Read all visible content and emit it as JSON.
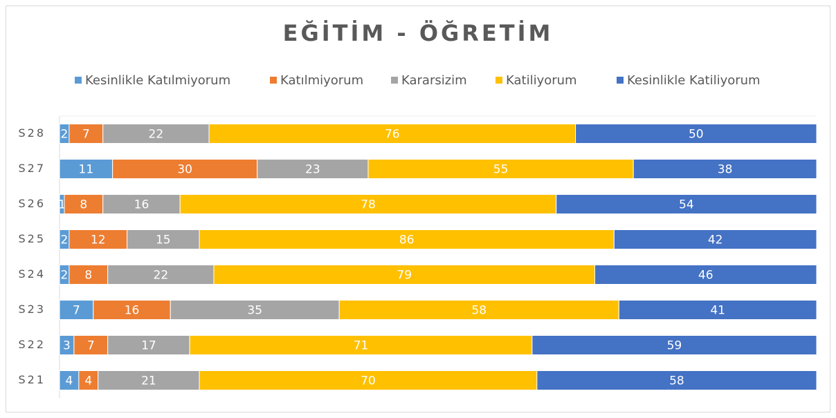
{
  "chart_data": {
    "type": "bar",
    "orientation": "horizontal",
    "stacked": true,
    "title": "EĞİTİM - ÖĞRETİM",
    "categories": [
      "S28",
      "S27",
      "S26",
      "S25",
      "S24",
      "S23",
      "S22",
      "S21"
    ],
    "series": [
      {
        "name": "Kesinlikle Katılmiyorum",
        "color": "#5b9bd5",
        "values": [
          2,
          11,
          1,
          2,
          2,
          7,
          3,
          4
        ]
      },
      {
        "name": "Katılmiyorum",
        "color": "#ed7d31",
        "values": [
          7,
          30,
          8,
          12,
          8,
          16,
          7,
          4
        ]
      },
      {
        "name": "Kararsizim",
        "color": "#a5a5a5",
        "values": [
          22,
          23,
          16,
          15,
          22,
          35,
          17,
          21
        ]
      },
      {
        "name": "Katiliyorum",
        "color": "#ffc000",
        "values": [
          76,
          55,
          78,
          86,
          79,
          58,
          71,
          70
        ]
      },
      {
        "name": "Kesinlikle Katiliyorum",
        "color": "#4472c4",
        "values": [
          50,
          38,
          54,
          42,
          46,
          41,
          59,
          58
        ]
      }
    ],
    "legend": "top"
  }
}
